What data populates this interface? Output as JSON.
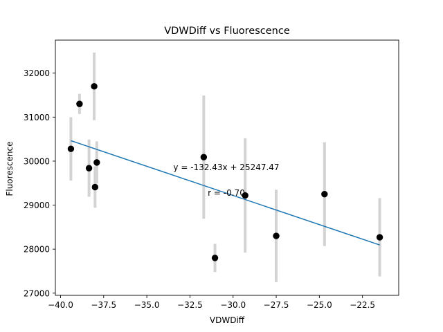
{
  "chart_data": {
    "type": "scatter",
    "title": "VDWDiff vs Fluorescence",
    "xlabel": "VDWDiff",
    "ylabel": "Fluorescence",
    "xlim": [
      -40.3,
      -20.4
    ],
    "ylim": [
      26950,
      32750
    ],
    "xticks": [
      -40.0,
      -37.5,
      -35.0,
      -32.5,
      -30.0,
      -27.5,
      -25.0,
      -22.5
    ],
    "xtick_labels": [
      "−40.0",
      "−37.5",
      "−35.0",
      "−32.5",
      "−30.0",
      "−27.5",
      "−25.0",
      "−22.5"
    ],
    "yticks": [
      27000,
      28000,
      29000,
      30000,
      31000,
      32000
    ],
    "ytick_labels": [
      "27000",
      "28000",
      "29000",
      "30000",
      "31000",
      "32000"
    ],
    "grid": false,
    "series": [
      {
        "points": [
          {
            "x": -39.4,
            "y": 30280,
            "err": 720
          },
          {
            "x": -38.9,
            "y": 31300,
            "err": 230
          },
          {
            "x": -38.35,
            "y": 29840,
            "err": 650
          },
          {
            "x": -38.05,
            "y": 31700,
            "err": 770
          },
          {
            "x": -38.0,
            "y": 29410,
            "err": 470
          },
          {
            "x": -37.9,
            "y": 29970,
            "err": 480
          },
          {
            "x": -31.7,
            "y": 30090,
            "err": 1400
          },
          {
            "x": -31.05,
            "y": 27800,
            "err": 320
          },
          {
            "x": -29.3,
            "y": 29220,
            "err": 1300
          },
          {
            "x": -27.5,
            "y": 28300,
            "err": 1050
          },
          {
            "x": -24.7,
            "y": 29250,
            "err": 1180
          },
          {
            "x": -21.5,
            "y": 28270,
            "err": 890
          }
        ]
      }
    ],
    "fit": {
      "x_range": [
        -39.4,
        -21.5
      ],
      "slope": -132.43,
      "intercept": 25247.47,
      "equation_label": "y = -132.43x + 25247.47",
      "r_label": "r = -0.70"
    },
    "colors": {
      "points": "#000000",
      "errorbars": "#d3d3d3",
      "fit_line": "#1f77b4"
    }
  }
}
